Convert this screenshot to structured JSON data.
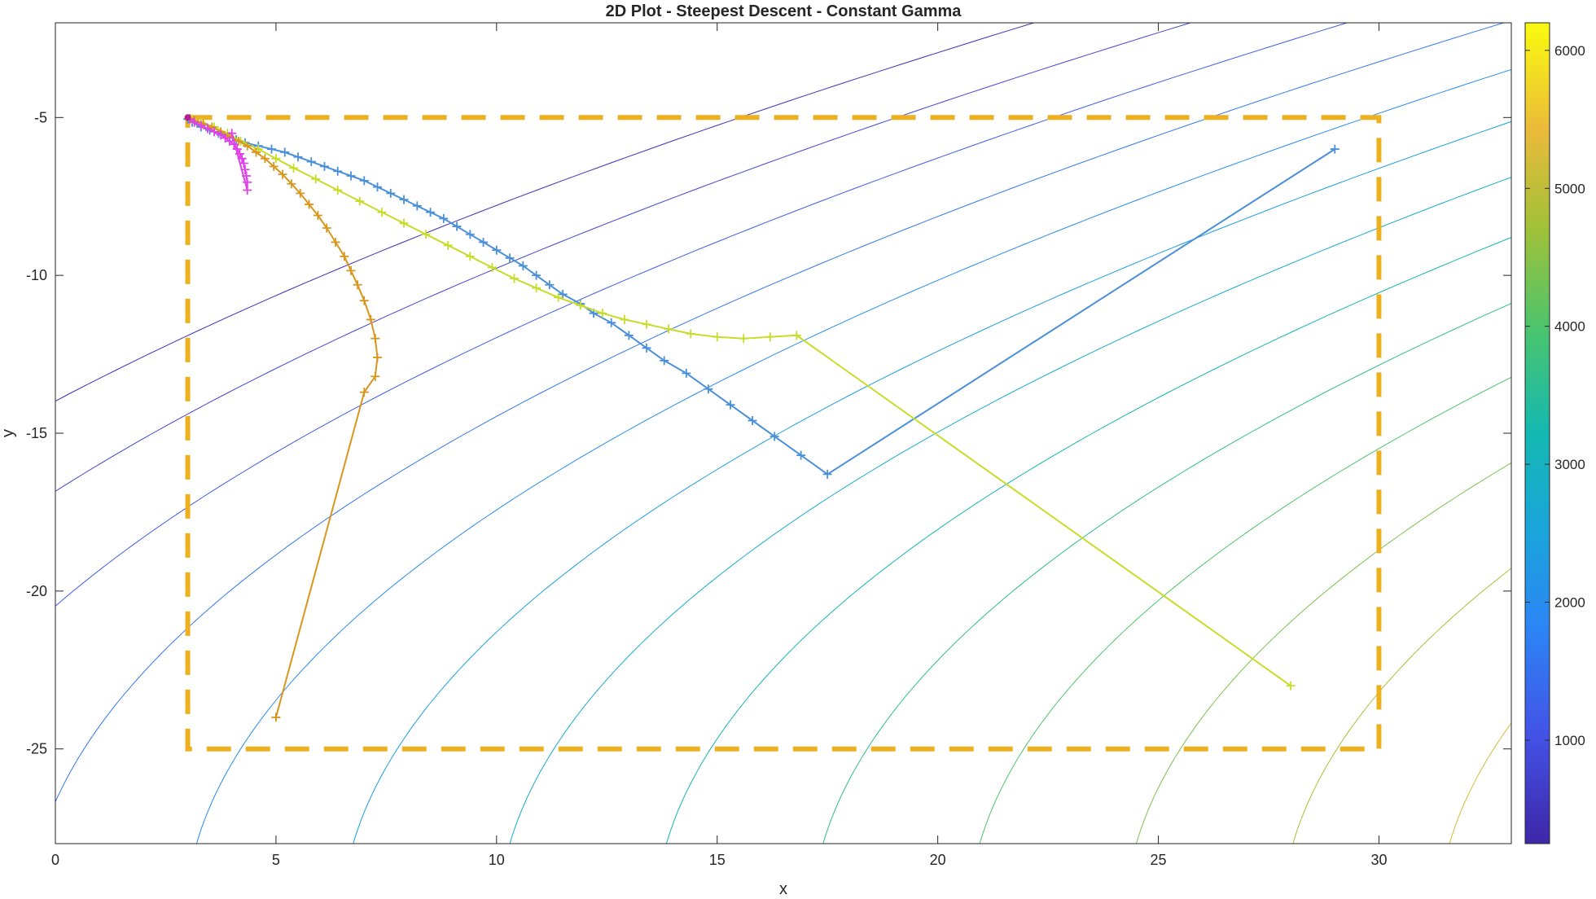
{
  "chart_data": {
    "type": "line",
    "title": "2D Plot - Steepest Descent - Constant Gamma",
    "xlabel": "x",
    "ylabel": "y",
    "xlim": [
      0,
      33
    ],
    "ylim": [
      -28,
      -2
    ],
    "xticks": [
      0,
      5,
      10,
      15,
      20,
      25,
      30
    ],
    "yticks": [
      -5,
      -10,
      -15,
      -20,
      -25
    ],
    "grid": false,
    "colorbar": {
      "range": [
        250,
        6200
      ],
      "ticks": [
        1000,
        2000,
        3000,
        4000,
        5000,
        6000
      ],
      "colormap": "parula"
    },
    "contour": {
      "levels": [
        400,
        800,
        1200,
        1600,
        2000,
        2400,
        2800,
        3200,
        3600,
        4000,
        4400,
        4800,
        5200,
        5600,
        6000
      ]
    },
    "constraint_box": {
      "x": [
        3,
        30
      ],
      "y": [
        -25,
        -5
      ],
      "style": "dashed",
      "color": "#EDB120"
    },
    "series": [
      {
        "color": "#4A90D9",
        "marker": "+",
        "x": [
          29,
          17.5,
          16.9,
          16.3,
          15.8,
          15.3,
          14.8,
          14.3,
          13.8,
          13.4,
          13.0,
          12.6,
          12.2,
          11.9,
          11.5,
          11.2,
          10.9,
          10.6,
          10.3,
          10.0,
          9.7,
          9.4,
          9.1,
          8.8,
          8.5,
          8.2,
          7.9,
          7.6,
          7.3,
          7.0,
          6.7,
          6.4,
          6.1,
          5.8,
          5.5,
          5.2,
          4.9,
          4.6,
          4.3,
          4.1,
          3.9,
          3.7,
          3.5,
          3.3,
          3.1,
          3.0
        ],
        "y": [
          -6.0,
          -16.3,
          -15.7,
          -15.1,
          -14.6,
          -14.1,
          -13.6,
          -13.1,
          -12.7,
          -12.3,
          -11.9,
          -11.5,
          -11.2,
          -10.9,
          -10.6,
          -10.3,
          -10.0,
          -9.7,
          -9.45,
          -9.2,
          -8.95,
          -8.7,
          -8.45,
          -8.2,
          -8.0,
          -7.8,
          -7.6,
          -7.4,
          -7.2,
          -7.0,
          -6.85,
          -6.7,
          -6.55,
          -6.4,
          -6.25,
          -6.1,
          -6.0,
          -5.9,
          -5.8,
          -5.7,
          -5.6,
          -5.5,
          -5.4,
          -5.3,
          -5.15,
          -5.05
        ]
      },
      {
        "color": "#C8DC2A",
        "marker": "+",
        "x": [
          28,
          16.8,
          16.2,
          15.6,
          15.0,
          14.4,
          13.9,
          13.4,
          12.9,
          12.4,
          11.9,
          11.4,
          10.9,
          10.4,
          9.9,
          9.4,
          8.9,
          8.4,
          7.9,
          7.4,
          6.9,
          6.4,
          5.9,
          5.4,
          5.0,
          4.6,
          4.2,
          3.9,
          3.6,
          3.3,
          3.1
        ],
        "y": [
          -23.0,
          -11.9,
          -11.95,
          -12.0,
          -11.95,
          -11.85,
          -11.7,
          -11.55,
          -11.4,
          -11.2,
          -10.95,
          -10.7,
          -10.4,
          -10.1,
          -9.75,
          -9.4,
          -9.05,
          -8.7,
          -8.35,
          -8.0,
          -7.65,
          -7.3,
          -6.95,
          -6.6,
          -6.3,
          -6.0,
          -5.75,
          -5.5,
          -5.3,
          -5.15,
          -5.05
        ]
      },
      {
        "color": "#D9961E",
        "marker": "+",
        "x": [
          5,
          7.0,
          7.25,
          7.3,
          7.25,
          7.15,
          7.0,
          6.85,
          6.7,
          6.55,
          6.35,
          6.15,
          5.95,
          5.75,
          5.55,
          5.35,
          5.15,
          4.95,
          4.75,
          4.55,
          4.35,
          4.15,
          3.95,
          3.75,
          3.55,
          3.35,
          3.15,
          3.05
        ],
        "y": [
          -24.0,
          -13.7,
          -13.2,
          -12.6,
          -12.0,
          -11.4,
          -10.8,
          -10.3,
          -9.85,
          -9.4,
          -8.95,
          -8.5,
          -8.1,
          -7.75,
          -7.4,
          -7.1,
          -6.8,
          -6.55,
          -6.3,
          -6.1,
          -5.9,
          -5.75,
          -5.6,
          -5.45,
          -5.3,
          -5.2,
          -5.1,
          -5.03
        ]
      },
      {
        "color": "#E040E8",
        "marker": "+",
        "x": [
          4.0,
          4.35,
          4.35,
          4.33,
          4.3,
          4.27,
          4.23,
          4.18,
          4.12,
          4.05,
          3.95,
          3.85,
          3.75,
          3.6,
          3.45,
          3.3,
          3.15,
          3.05
        ],
        "y": [
          -5.5,
          -7.3,
          -7.05,
          -6.85,
          -6.65,
          -6.45,
          -6.3,
          -6.15,
          -6.0,
          -5.85,
          -5.75,
          -5.65,
          -5.55,
          -5.45,
          -5.35,
          -5.25,
          -5.15,
          -5.05
        ]
      }
    ]
  }
}
